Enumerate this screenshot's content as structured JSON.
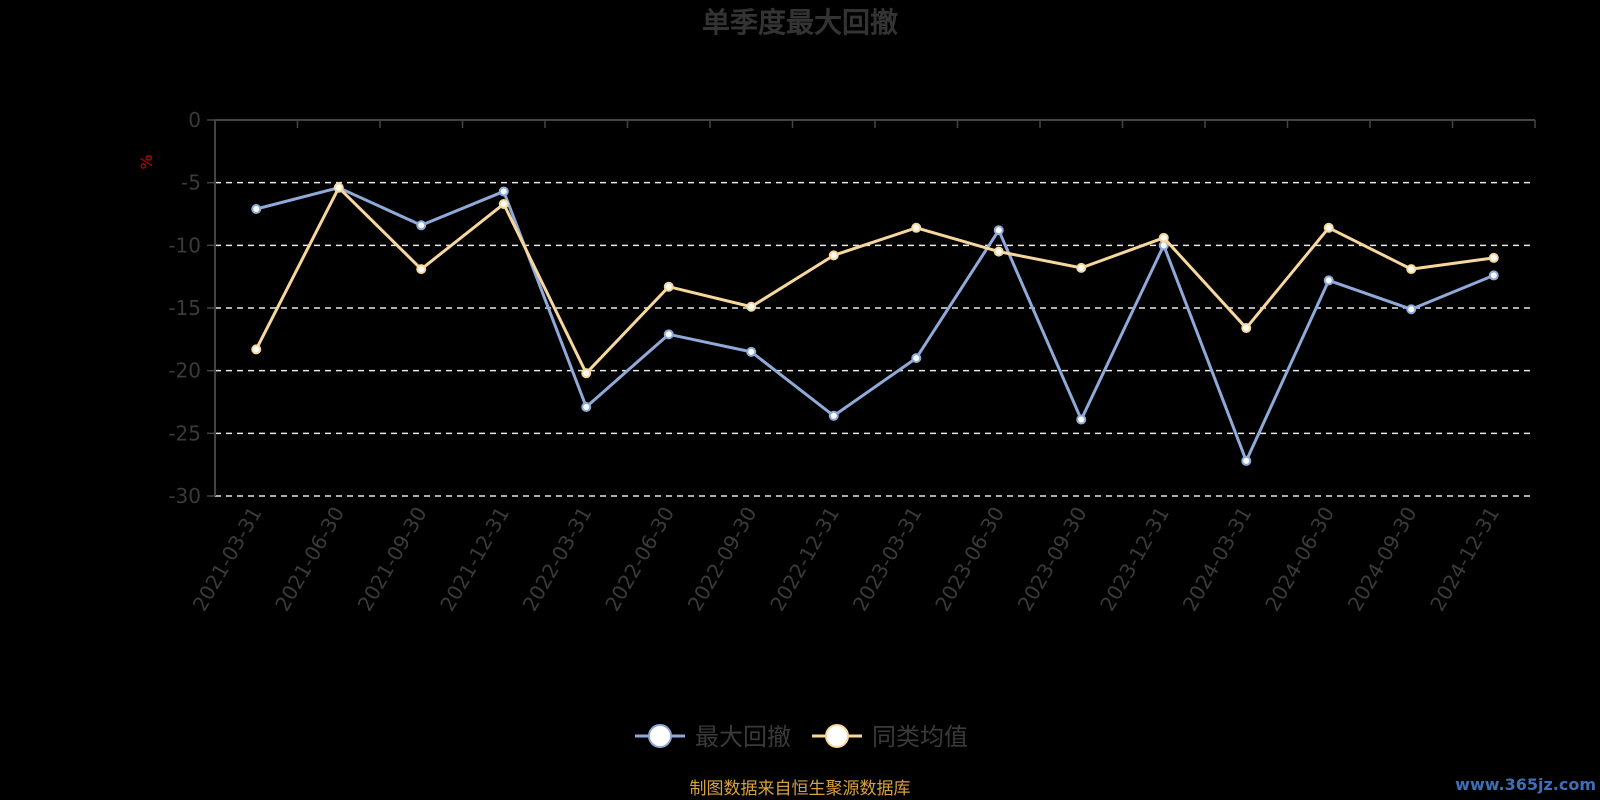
{
  "chart_data": {
    "type": "line",
    "title": "单季度最大回撤",
    "ylabel": "%",
    "ylim": [
      -30,
      0
    ],
    "yticks": [
      0,
      -5,
      -10,
      -15,
      -20,
      -25,
      -30
    ],
    "grid": true,
    "legend_position": "bottom-center",
    "categories": [
      "2021-03-31",
      "2021-06-30",
      "2021-09-30",
      "2021-12-31",
      "2022-03-31",
      "2022-06-30",
      "2022-09-30",
      "2022-12-31",
      "2023-03-31",
      "2023-06-30",
      "2023-09-30",
      "2023-12-31",
      "2024-03-31",
      "2024-06-30",
      "2024-09-30",
      "2024-12-31"
    ],
    "series": [
      {
        "name": "最大回撤",
        "color": "#8fa9d8",
        "values": [
          -7.1,
          -5.4,
          -8.4,
          -5.7,
          -22.9,
          -17.1,
          -18.5,
          -23.6,
          -19.0,
          -8.8,
          -23.9,
          -10.0,
          -27.2,
          -12.8,
          -15.1,
          -12.4
        ]
      },
      {
        "name": "同类均值",
        "color": "#f7d79b",
        "values": [
          -18.3,
          -5.4,
          -11.9,
          -6.7,
          -20.2,
          -13.3,
          -14.9,
          -10.8,
          -8.6,
          -10.5,
          -11.8,
          -9.4,
          -16.6,
          -8.6,
          -11.9,
          -11.0
        ]
      }
    ]
  },
  "footer": {
    "source": "制图数据来自恒生聚源数据库",
    "watermark": "www.365jz.com"
  }
}
